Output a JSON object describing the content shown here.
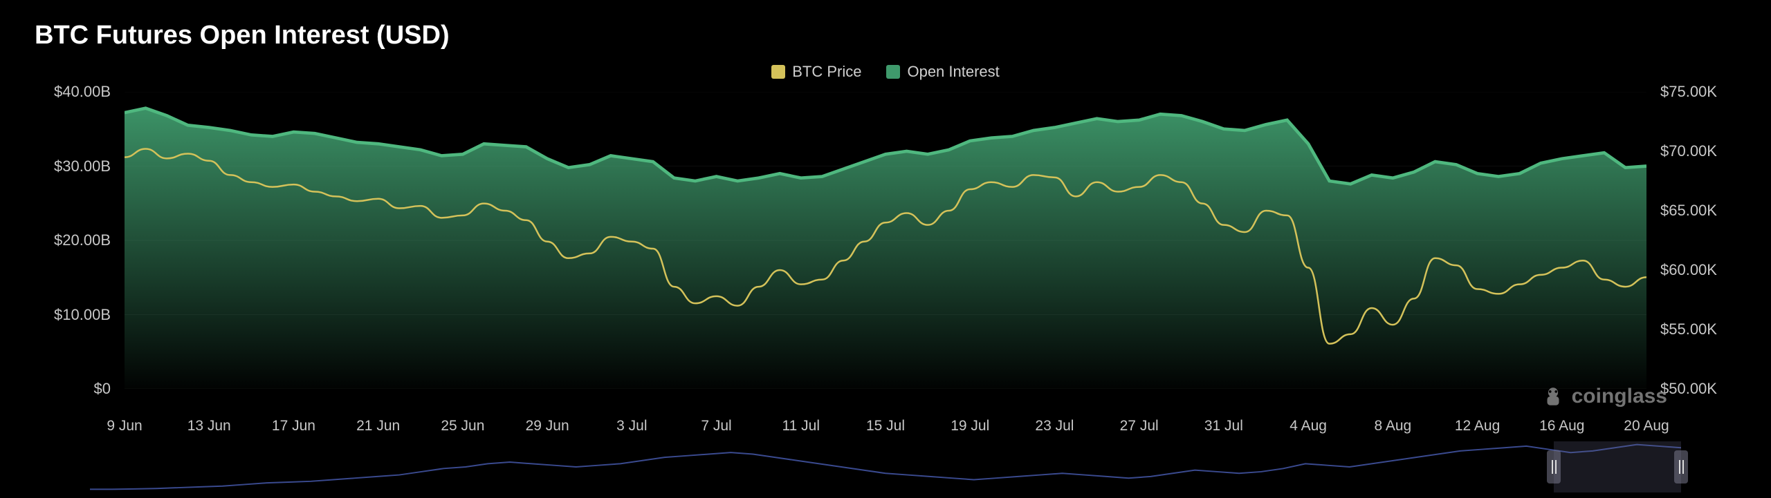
{
  "title": "BTC Futures Open Interest (USD)",
  "legend": {
    "btc_price": {
      "label": "BTC Price",
      "color": "#d4c25a"
    },
    "open_interest": {
      "label": "Open Interest",
      "color": "#3f9a6c"
    }
  },
  "watermark": "coinglass",
  "chart": {
    "type": "area+line",
    "background_color": "#000000",
    "grid_color": "#1a1a1a",
    "axis_text_color": "#c8c8c8",
    "title_fontsize": 38,
    "label_fontsize": 22,
    "y_left": {
      "label_prefix": "$",
      "label_suffix": "B",
      "min": 0,
      "max": 40,
      "ticks": [
        {
          "value": 40,
          "label": "$40.00B"
        },
        {
          "value": 30,
          "label": "$30.00B"
        },
        {
          "value": 20,
          "label": "$20.00B"
        },
        {
          "value": 10,
          "label": "$10.00B"
        },
        {
          "value": 0,
          "label": "$0"
        }
      ]
    },
    "y_right": {
      "label_prefix": "$",
      "label_suffix": "K",
      "min": 50,
      "max": 75,
      "ticks": [
        {
          "value": 75,
          "label": "$75.00K"
        },
        {
          "value": 70,
          "label": "$70.00K"
        },
        {
          "value": 65,
          "label": "$65.00K"
        },
        {
          "value": 60,
          "label": "$60.00K"
        },
        {
          "value": 55,
          "label": "$55.00K"
        },
        {
          "value": 50,
          "label": "$50.00K"
        }
      ]
    },
    "x_axis": {
      "labels": [
        "9 Jun",
        "13 Jun",
        "17 Jun",
        "21 Jun",
        "25 Jun",
        "29 Jun",
        "3 Jul",
        "7 Jul",
        "11 Jul",
        "15 Jul",
        "19 Jul",
        "23 Jul",
        "27 Jul",
        "31 Jul",
        "4 Aug",
        "8 Aug",
        "12 Aug",
        "16 Aug",
        "20 Aug"
      ]
    },
    "series": {
      "open_interest": {
        "name": "Open Interest",
        "color_top": "#3f9a6c",
        "color_bottom": "rgba(30,80,55,0.05)",
        "stroke": "#4fb87f",
        "stroke_width": 2,
        "data": [
          37.2,
          37.8,
          36.8,
          35.5,
          35.2,
          34.8,
          34.2,
          34.0,
          34.6,
          34.4,
          33.8,
          33.2,
          33.0,
          32.6,
          32.2,
          31.4,
          31.6,
          33.0,
          32.8,
          32.6,
          31.0,
          29.8,
          30.2,
          31.4,
          31.0,
          30.6,
          28.4,
          28.0,
          28.6,
          28.0,
          28.4,
          29.0,
          28.4,
          28.6,
          29.6,
          30.6,
          31.6,
          32.0,
          31.6,
          32.2,
          33.4,
          33.8,
          34.0,
          34.8,
          35.2,
          35.8,
          36.4,
          36.0,
          36.2,
          37.0,
          36.8,
          36.0,
          35.0,
          34.8,
          35.6,
          36.2,
          33.0,
          28.0,
          27.6,
          28.8,
          28.4,
          29.2,
          30.6,
          30.2,
          29.0,
          28.6,
          29.0,
          30.4,
          31.0,
          31.4,
          31.8,
          29.8,
          30.0
        ]
      },
      "btc_price": {
        "name": "BTC Price",
        "color": "#d4c25a",
        "stroke_width": 2.5,
        "data": [
          69.5,
          70.2,
          69.4,
          69.8,
          69.2,
          68.0,
          67.4,
          67.0,
          67.2,
          66.6,
          66.2,
          65.8,
          66.0,
          65.2,
          65.4,
          64.4,
          64.6,
          65.6,
          65.0,
          64.2,
          62.4,
          61.0,
          61.4,
          62.8,
          62.4,
          61.8,
          58.6,
          57.2,
          57.8,
          57.0,
          58.6,
          60.0,
          58.8,
          59.2,
          60.8,
          62.4,
          64.0,
          64.8,
          63.8,
          65.0,
          66.8,
          67.4,
          67.0,
          68.0,
          67.8,
          66.2,
          67.4,
          66.6,
          67.0,
          68.0,
          67.4,
          65.6,
          63.8,
          63.2,
          65.0,
          64.6,
          60.2,
          53.8,
          54.6,
          56.8,
          55.4,
          57.6,
          61.0,
          60.4,
          58.4,
          58.0,
          58.8,
          59.6,
          60.2,
          60.8,
          59.2,
          58.6,
          59.4
        ]
      }
    },
    "brush": {
      "line_color": "#3a4a8f",
      "line_width": 2,
      "data": [
        2,
        2,
        2.2,
        2.5,
        3,
        3.5,
        4,
        5,
        6,
        6.5,
        7,
        8,
        9,
        10,
        11,
        13,
        15,
        16,
        18,
        19,
        18,
        17,
        16,
        17,
        18,
        20,
        22,
        23,
        24,
        25,
        24,
        22,
        20,
        18,
        16,
        14,
        12,
        11,
        10,
        9,
        8,
        9,
        10,
        11,
        12,
        11,
        10,
        9,
        10,
        12,
        14,
        13,
        12,
        13,
        15,
        18,
        17,
        16,
        18,
        20,
        22,
        24,
        26,
        27,
        28,
        29,
        27,
        25,
        26,
        28,
        30,
        29,
        28
      ],
      "data_min": 0,
      "data_max": 32,
      "selection_start_pct": 92,
      "selection_end_pct": 100
    }
  }
}
